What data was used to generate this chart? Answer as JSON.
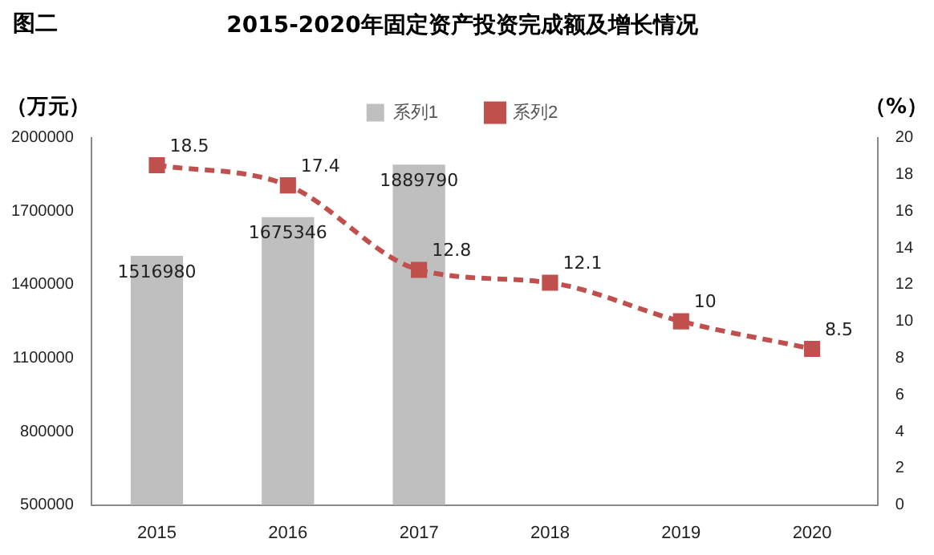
{
  "chart_data": {
    "type": "bar",
    "title": "2015-2020年固定资产投资完成额及增长情况",
    "annotations": [
      "图二"
    ],
    "ylabel": "（万元）",
    "y2label": "（%）",
    "categories": [
      "2015",
      "2016",
      "2017",
      "2018",
      "2019",
      "2020"
    ],
    "series": [
      {
        "name": "系列1",
        "color": "#bfbfbf",
        "values": [
          1516980,
          1675346,
          1889790,
          null,
          null,
          null
        ]
      },
      {
        "name": "系列2",
        "type": "line",
        "axis": "y2",
        "color": "#c0504d",
        "marker": "square",
        "line_style": "dashed",
        "values": [
          18.5,
          17.4,
          12.8,
          12.1,
          10,
          8.5
        ]
      }
    ],
    "ylim": [
      500000,
      2000000
    ],
    "yticks": [
      500000,
      800000,
      1100000,
      1400000,
      1700000,
      2000000
    ],
    "y2lim": [
      0,
      20
    ],
    "y2ticks": [
      0,
      2,
      4,
      6,
      8,
      10,
      12,
      14,
      16,
      18,
      20
    ],
    "legend": "top",
    "grid": false,
    "data_labels": true
  }
}
